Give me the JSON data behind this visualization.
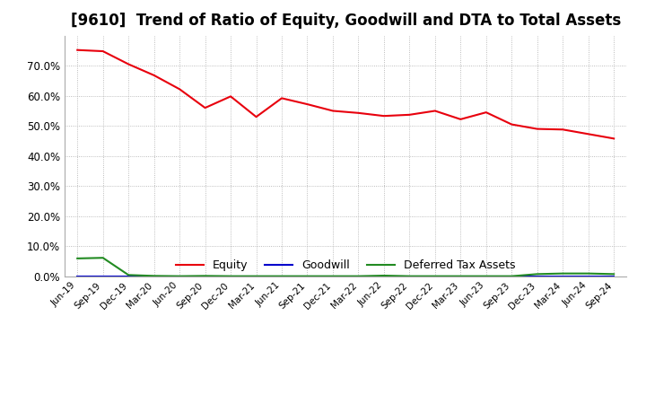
{
  "title": "[9610]  Trend of Ratio of Equity, Goodwill and DTA to Total Assets",
  "x_labels": [
    "Jun-19",
    "Sep-19",
    "Dec-19",
    "Mar-20",
    "Jun-20",
    "Sep-20",
    "Dec-20",
    "Mar-21",
    "Jun-21",
    "Sep-21",
    "Dec-21",
    "Mar-22",
    "Jun-22",
    "Sep-22",
    "Dec-22",
    "Mar-23",
    "Jun-23",
    "Sep-23",
    "Dec-23",
    "Mar-24",
    "Jun-24",
    "Sep-24"
  ],
  "equity": [
    0.752,
    0.748,
    0.705,
    0.668,
    0.622,
    0.56,
    0.598,
    0.53,
    0.592,
    0.572,
    0.55,
    0.543,
    0.533,
    0.537,
    0.55,
    0.522,
    0.545,
    0.505,
    0.49,
    0.488,
    0.473,
    0.458
  ],
  "goodwill": [
    0.0,
    0.0,
    0.0,
    0.0,
    0.0,
    0.0,
    0.0,
    0.0,
    0.0,
    0.0,
    0.0,
    0.0,
    0.0,
    0.0,
    0.0,
    0.0,
    0.0,
    0.0,
    0.0,
    0.0,
    0.0,
    0.0
  ],
  "dta": [
    0.06,
    0.062,
    0.005,
    0.002,
    0.001,
    0.002,
    0.001,
    0.001,
    0.001,
    0.001,
    0.001,
    0.001,
    0.003,
    0.001,
    0.001,
    0.001,
    0.001,
    0.001,
    0.008,
    0.01,
    0.01,
    0.008
  ],
  "equity_color": "#e8000d",
  "goodwill_color": "#0000cc",
  "dta_color": "#228B22",
  "background_color": "#ffffff",
  "plot_background_color": "#ffffff",
  "grid_color": "#aaaaaa",
  "ylim": [
    0.0,
    0.8
  ],
  "yticks": [
    0.0,
    0.1,
    0.2,
    0.3,
    0.4,
    0.5,
    0.6,
    0.7
  ],
  "title_fontsize": 12,
  "legend_labels": [
    "Equity",
    "Goodwill",
    "Deferred Tax Assets"
  ]
}
